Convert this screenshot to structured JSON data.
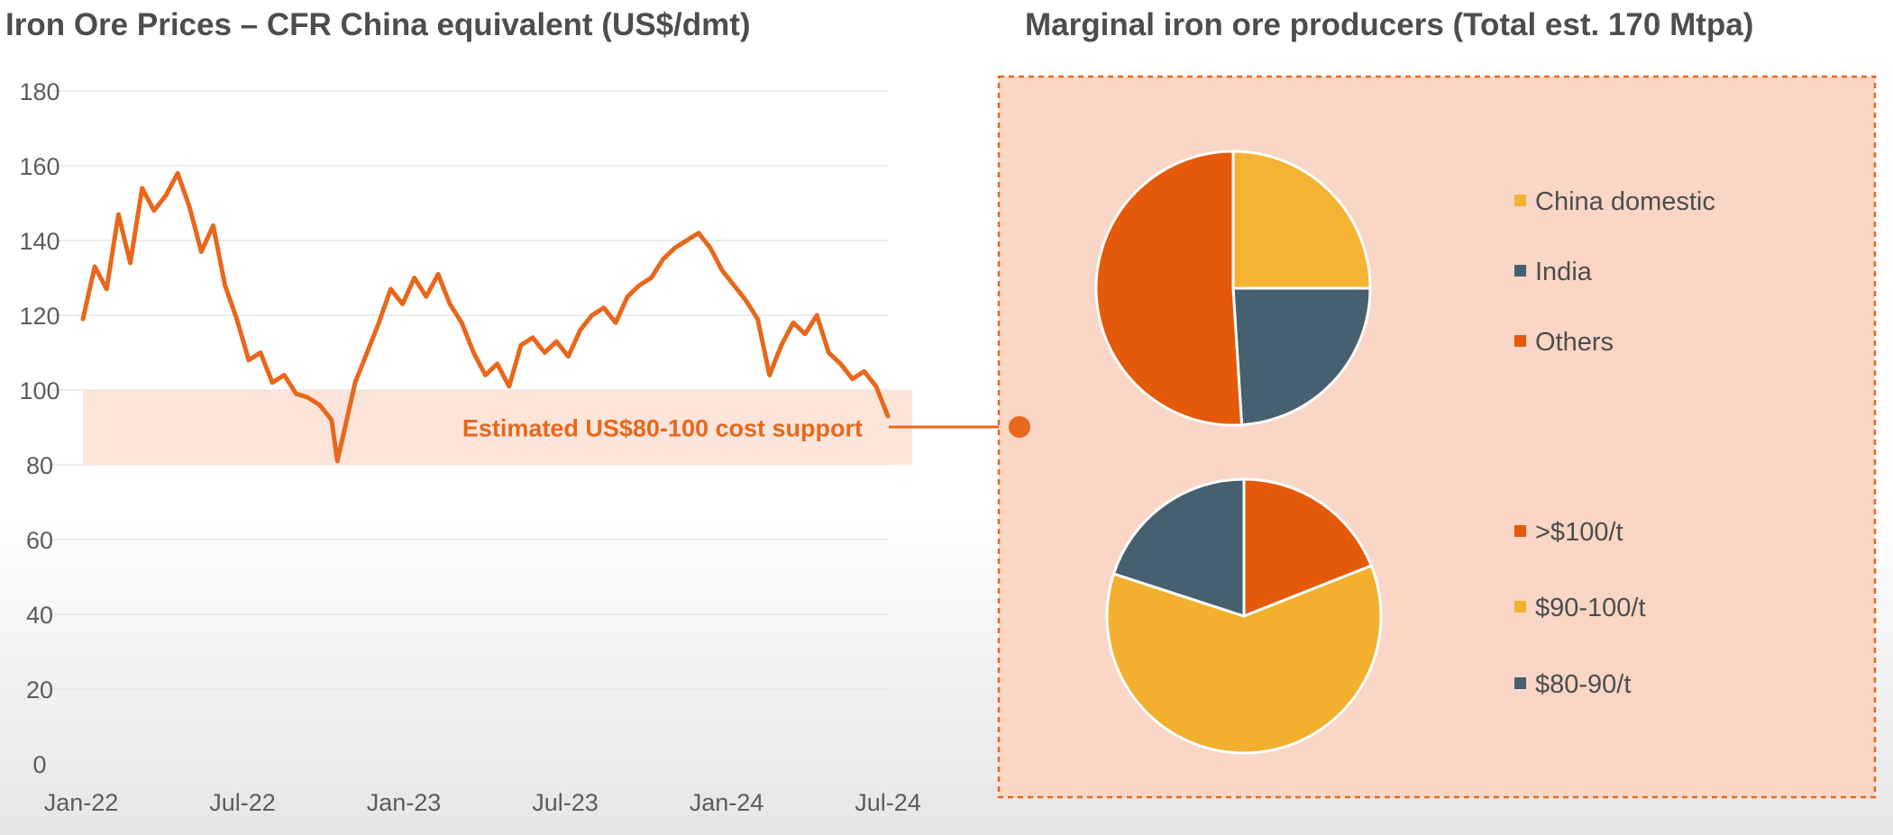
{
  "chart_data": [
    {
      "type": "line",
      "title": "Iron Ore Prices – CFR China equivalent (US$/dmt)",
      "xlabel": "",
      "ylabel": "",
      "ylim": [
        0,
        180
      ],
      "yticks": [
        "0",
        "20",
        "40",
        "60",
        "80",
        "100",
        "120",
        "140",
        "160",
        "180"
      ],
      "xticks": [
        "Jan-22",
        "Jul-22",
        "Jan-23",
        "Jul-23",
        "Jan-24",
        "Jul-24"
      ],
      "grid": true,
      "band": {
        "from": 80,
        "to": 100,
        "label": "Estimated US$80-100 cost support"
      },
      "x": [
        "2022-01-03",
        "2022-01-17",
        "2022-01-31",
        "2022-02-14",
        "2022-02-28",
        "2022-03-14",
        "2022-03-28",
        "2022-04-11",
        "2022-04-25",
        "2022-05-09",
        "2022-05-23",
        "2022-06-06",
        "2022-06-20",
        "2022-07-04",
        "2022-07-18",
        "2022-08-01",
        "2022-08-15",
        "2022-08-29",
        "2022-09-12",
        "2022-09-26",
        "2022-10-10",
        "2022-10-24",
        "2022-10-31",
        "2022-11-07",
        "2022-11-21",
        "2022-12-05",
        "2022-12-19",
        "2023-01-02",
        "2023-01-16",
        "2023-01-30",
        "2023-02-13",
        "2023-02-27",
        "2023-03-13",
        "2023-03-27",
        "2023-04-10",
        "2023-04-24",
        "2023-05-08",
        "2023-05-22",
        "2023-06-05",
        "2023-06-19",
        "2023-07-03",
        "2023-07-17",
        "2023-07-31",
        "2023-08-14",
        "2023-08-28",
        "2023-09-11",
        "2023-09-25",
        "2023-10-09",
        "2023-10-23",
        "2023-11-06",
        "2023-11-20",
        "2023-12-04",
        "2023-12-18",
        "2024-01-01",
        "2024-01-15",
        "2024-01-29",
        "2024-02-12",
        "2024-02-26",
        "2024-03-11",
        "2024-03-25",
        "2024-04-08",
        "2024-04-22",
        "2024-05-06",
        "2024-05-20",
        "2024-06-03",
        "2024-06-17",
        "2024-07-01",
        "2024-07-15",
        "2024-07-29",
        "2024-08-12"
      ],
      "series": [
        {
          "values": [
            119,
            133,
            127,
            147,
            134,
            154,
            148,
            152,
            158,
            149,
            137,
            144,
            128,
            119,
            108,
            110,
            102,
            104,
            99,
            98,
            96,
            92,
            81,
            88,
            102,
            110,
            118,
            127,
            123,
            130,
            125,
            131,
            123,
            118,
            110,
            104,
            107,
            101,
            112,
            114,
            110,
            113,
            109,
            116,
            120,
            122,
            118,
            125,
            128,
            130,
            135,
            138,
            140,
            142,
            138,
            132,
            128,
            124,
            119,
            104,
            112,
            118,
            115,
            120,
            110,
            107,
            103,
            105,
            101,
            93
          ]
        }
      ]
    },
    {
      "type": "pie",
      "title": "Marginal iron ore producers (Total est. 170 Mtpa)",
      "categories": [
        "China domestic",
        "India",
        "Others"
      ],
      "values": [
        25,
        24,
        51
      ],
      "colors": [
        "#F5B335",
        "#46606F",
        "#E45A0A"
      ]
    },
    {
      "type": "pie",
      "categories": [
        ">$100/t",
        "$90-100/t",
        "$80-90/t"
      ],
      "values": [
        19,
        61,
        20
      ],
      "colors": [
        "#E45A0A",
        "#F2B02E",
        "#46606F"
      ]
    }
  ],
  "colors": {
    "line": "#E8671C",
    "band_fill": "#FBE5DA",
    "panel_fill": "#F9D6C5",
    "panel_border": "#E8671C",
    "title_text": "#4D4D4D",
    "axis_text": "#5C5C5C"
  }
}
